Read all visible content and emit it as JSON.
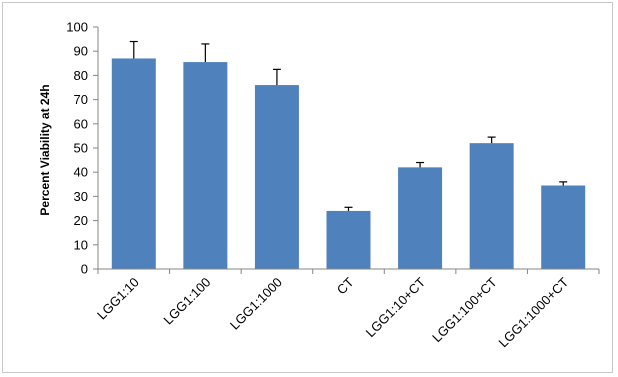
{
  "chart_data": {
    "type": "bar",
    "title": "",
    "xlabel": "",
    "ylabel": "Percent Viability at 24h",
    "ylim": [
      0,
      100
    ],
    "yticks": [
      0,
      10,
      20,
      30,
      40,
      50,
      60,
      70,
      80,
      90,
      100
    ],
    "grid": false,
    "legend": "none",
    "categories": [
      "LGG1:10",
      "LGG1:100",
      "LGG1:1000",
      "CT",
      "LGG1:10+CT",
      "LGG1:100+CT",
      "LGG1:1000+CT"
    ],
    "values": [
      87,
      85.5,
      76,
      24,
      42,
      52,
      34.5
    ],
    "error_plus": [
      7,
      7.5,
      6.5,
      1.5,
      2,
      2.5,
      1.5
    ],
    "bar_color": "#4f81bd",
    "axis_color": "#868686"
  }
}
